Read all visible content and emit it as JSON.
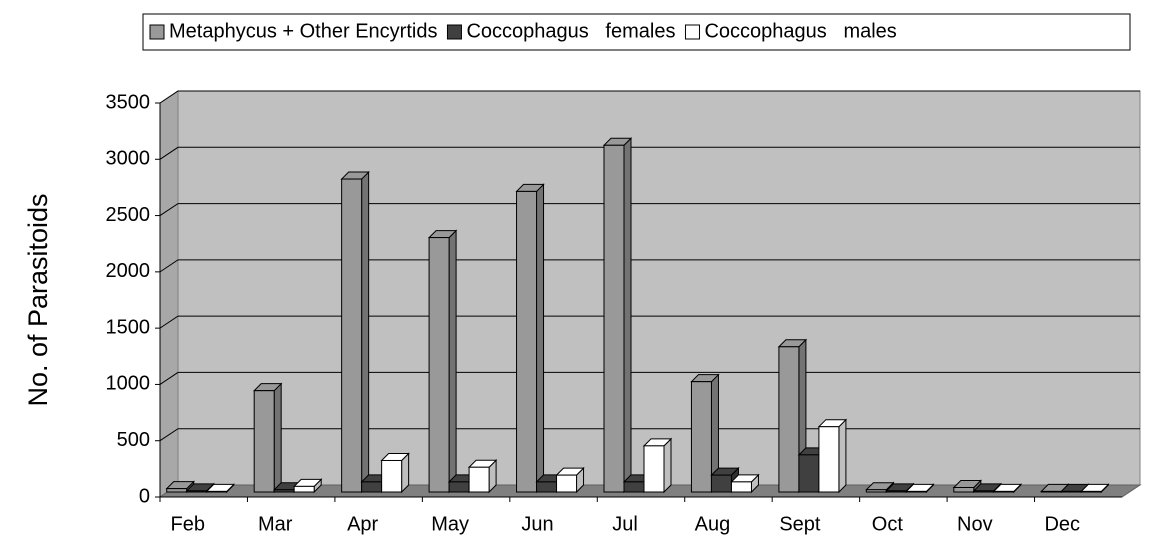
{
  "chart_data": {
    "type": "bar3d",
    "y_label": "No. of Parasitoids",
    "categories": [
      "Feb",
      "Mar",
      "Apr",
      "May",
      "Jun",
      "Jul",
      "Aug",
      "Sept",
      "Oct",
      "Nov",
      "Dec"
    ],
    "series": [
      {
        "name": "Metaphycus + Other Encyrtids",
        "color": "#999999",
        "values": [
          30,
          900,
          2780,
          2260,
          2670,
          3080,
          980,
          1290,
          20,
          40,
          5
        ]
      },
      {
        "name": "Coccophagus   females",
        "color": "#404040",
        "values": [
          10,
          20,
          90,
          90,
          90,
          90,
          150,
          330,
          10,
          10,
          5
        ]
      },
      {
        "name": "Coccophagus   males",
        "color": "#ffffff",
        "values": [
          5,
          50,
          280,
          220,
          150,
          410,
          90,
          580,
          5,
          5,
          5
        ]
      }
    ],
    "ylim": [
      0,
      3500
    ],
    "yticks": [
      0,
      500,
      1000,
      1500,
      2000,
      2500,
      3000,
      3500
    ],
    "grid": true,
    "legend": "top"
  }
}
